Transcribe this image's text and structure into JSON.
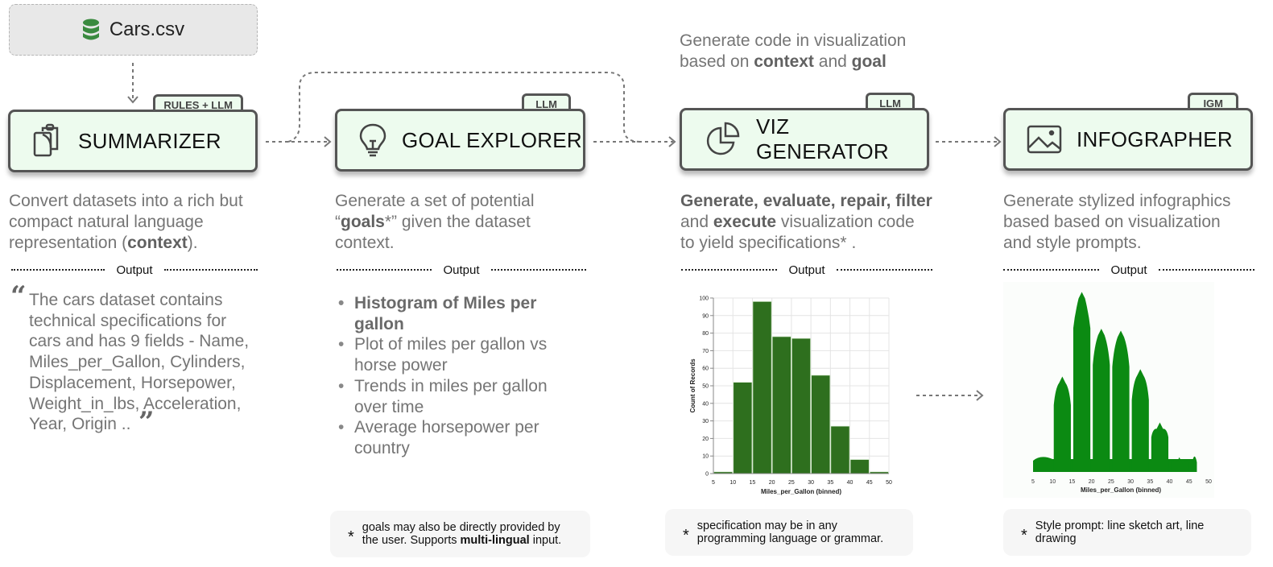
{
  "source": {
    "label": "Cars.csv",
    "icon": "database-icon",
    "icon_color": "#3a8a3f"
  },
  "top_annotation": {
    "line1": "Generate code in visualization",
    "line2_prefix": "based on ",
    "line2_bold1": "context",
    "line2_mid": " and ",
    "line2_bold2": "goal"
  },
  "stages": [
    {
      "title": "SUMMARIZER",
      "tag": "RULES + LLM",
      "icon": "clipboard-icon",
      "desc": {
        "l1": "Convert datasets into a rich but",
        "l2": "compact natural language",
        "l3_prefix": "representation (",
        "l3_bold": "context",
        "l3_suffix": ")."
      },
      "output_label": "Output",
      "output": {
        "open_quote": "“",
        "close_quote": "”",
        "lines": [
          "The cars dataset contains",
          "technical specifications for",
          "cars and has 9 fields - Name,",
          "Miles_per_Gallon, Cylinders,",
          "Displacement, Horsepower,",
          "Weight_in_lbs, Acceleration,",
          "Year, Origin .."
        ]
      }
    },
    {
      "title": "GOAL EXPLORER",
      "tag": "LLM",
      "icon": "lightbulb-icon",
      "desc": {
        "l1": "Generate a set of potential",
        "l2_open": "“",
        "l2_bold": "goals",
        "l2_star": "*”",
        "l2_rest": " given the dataset",
        "l3": "context."
      },
      "output_label": "Output",
      "goals": [
        "Histogram of Miles per gallon",
        "Plot of miles per gallon vs horse power",
        "Trends in miles per gallon over time",
        "Average horsepower per country"
      ],
      "note": {
        "star": "*",
        "t1": "goals may also be directly provided by",
        "t2_prefix": "the user. Supports ",
        "t2_bold": "multi-lingual",
        "t2_suffix": " input."
      }
    },
    {
      "title": "VIZ GENERATOR",
      "tag": "LLM",
      "icon": "pie-chart-icon",
      "desc": {
        "l1_bold": "Generate, evaluate, repair, filter",
        "l2_prefix": "and ",
        "l2_bold": "execute",
        "l2_rest": " visualization code",
        "l3": "to yield specifications* ."
      },
      "output_label": "Output",
      "note": {
        "star": "*",
        "t1": "specification may be in any",
        "t2": "programming language or grammar."
      }
    },
    {
      "title": "INFOGRAPHER",
      "tag": "IGM",
      "icon": "image-icon",
      "desc": {
        "l1": "Generate stylized infographics",
        "l2": "based based on visualization",
        "l3": "and style prompts."
      },
      "output_label": "Output",
      "note": {
        "star": "*",
        "t1": "Style prompt: line sketch art, line",
        "t2": "drawing"
      }
    }
  ],
  "colors": {
    "card_fill": "#edfbee",
    "card_border": "#555555",
    "bar_fill": "#2e6f1e",
    "infographic_fill": "#0b8a12"
  },
  "chart_data": {
    "type": "bar",
    "title": "",
    "xlabel": "Miles_per_Gallon (binned)",
    "ylabel": "Count of Records",
    "bins": [
      [
        5,
        10
      ],
      [
        10,
        15
      ],
      [
        15,
        20
      ],
      [
        20,
        25
      ],
      [
        25,
        30
      ],
      [
        30,
        35
      ],
      [
        35,
        40
      ],
      [
        40,
        45
      ],
      [
        45,
        50
      ]
    ],
    "categories": [
      "5-10",
      "10-15",
      "15-20",
      "20-25",
      "25-30",
      "30-35",
      "35-40",
      "40-45",
      "45-50"
    ],
    "values": [
      1,
      52,
      98,
      78,
      77,
      56,
      27,
      8,
      1
    ],
    "x_ticks": [
      "5",
      "10",
      "15",
      "20",
      "25",
      "30",
      "35",
      "40",
      "45",
      "50"
    ],
    "y_ticks": [
      "0",
      "10",
      "20",
      "30",
      "40",
      "50",
      "60",
      "70",
      "80",
      "90",
      "100"
    ],
    "ylim": [
      0,
      100
    ],
    "xlim": [
      5,
      50
    ],
    "grid": true
  },
  "infographic": {
    "xlabel": "Miles_per_Gallon (binned)",
    "x_ticks": [
      "5",
      "10",
      "15",
      "20",
      "25",
      "30",
      "35",
      "40",
      "45",
      "50"
    ]
  }
}
